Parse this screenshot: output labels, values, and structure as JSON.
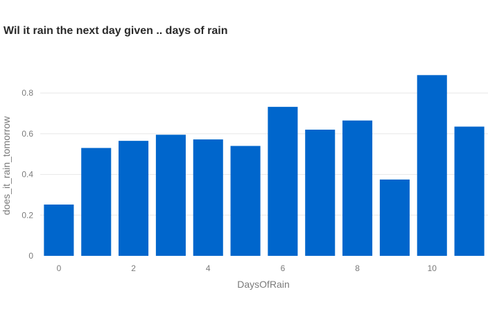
{
  "chart_data": {
    "type": "bar",
    "title": "Wil it rain the next day given .. days of rain",
    "xlabel": "DaysOfRain",
    "ylabel": "does_it_rain_tomorrow",
    "x": [
      0,
      1,
      2,
      3,
      4,
      5,
      6,
      7,
      8,
      9,
      10,
      11
    ],
    "values": [
      0.252,
      0.53,
      0.565,
      0.595,
      0.572,
      0.54,
      0.732,
      0.62,
      0.665,
      0.375,
      0.888,
      0.635
    ],
    "xticks": [
      "0",
      "2",
      "4",
      "6",
      "8",
      "10"
    ],
    "yticks": [
      "0",
      "0.2",
      "0.4",
      "0.6",
      "0.8"
    ],
    "ylim": [
      0,
      0.93
    ],
    "grid": true,
    "bar_color": "#0066cc",
    "grid_color": "#e8e8e8"
  }
}
